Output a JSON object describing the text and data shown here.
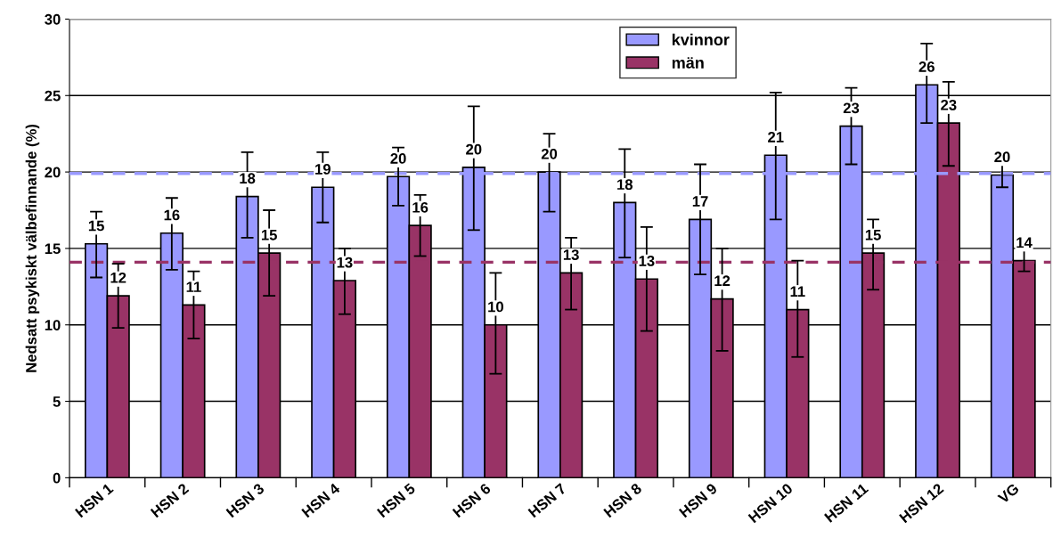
{
  "chart_data": {
    "type": "bar",
    "ylabel": "Nedsatt psykiskt välbefinnande (%)",
    "categories": [
      "HSN 1",
      "HSN 2",
      "HSN 3",
      "HSN 4",
      "HSN 5",
      "HSN 6",
      "HSN 7",
      "HSN 8",
      "HSN 9",
      "HSN 10",
      "HSN 11",
      "HSN 12",
      "VG"
    ],
    "series": [
      {
        "name": "kvinnor",
        "color": "#9999ff",
        "values": [
          15.3,
          16.0,
          18.4,
          19.0,
          19.7,
          20.3,
          20.0,
          18.0,
          16.9,
          21.1,
          23.0,
          25.7,
          19.8
        ],
        "value_labels": [
          "15",
          "16",
          "18",
          "19",
          "20",
          "20",
          "20",
          "18",
          "17",
          "21",
          "23",
          "26",
          "20"
        ],
        "errors": [
          [
            13.1,
            17.4
          ],
          [
            13.6,
            18.3
          ],
          [
            15.7,
            21.3
          ],
          [
            16.7,
            21.3
          ],
          [
            17.8,
            21.6
          ],
          [
            16.2,
            24.3
          ],
          [
            17.4,
            22.5
          ],
          [
            14.4,
            21.5
          ],
          [
            13.3,
            20.5
          ],
          [
            16.9,
            25.2
          ],
          [
            20.5,
            25.5
          ],
          [
            23.2,
            28.4
          ],
          [
            19.0,
            20.5
          ]
        ]
      },
      {
        "name": "män",
        "color": "#993366",
        "values": [
          11.9,
          11.3,
          14.7,
          12.9,
          16.5,
          10.0,
          13.4,
          13.0,
          11.7,
          11.0,
          14.7,
          23.2,
          14.2
        ],
        "value_labels": [
          "12",
          "11",
          "15",
          "13",
          "16",
          "10",
          "13",
          "13",
          "12",
          "11",
          "15",
          "23",
          "14"
        ],
        "errors": [
          [
            9.8,
            14.0
          ],
          [
            9.1,
            13.5
          ],
          [
            11.9,
            17.5
          ],
          [
            10.7,
            15.0
          ],
          [
            14.5,
            18.5
          ],
          [
            6.8,
            13.4
          ],
          [
            11.0,
            15.7
          ],
          [
            9.6,
            16.4
          ],
          [
            8.3,
            15.0
          ],
          [
            7.9,
            14.2
          ],
          [
            12.3,
            16.9
          ],
          [
            20.4,
            25.9
          ],
          [
            13.5,
            14.9
          ]
        ]
      }
    ],
    "ref_lines": [
      {
        "axis": "y",
        "value": 19.9,
        "color": "#9999ff",
        "line_style": "dashed"
      },
      {
        "axis": "y",
        "value": 14.1,
        "color": "#993366",
        "line_style": "dashed"
      }
    ],
    "ylim": [
      0,
      30
    ],
    "yticks": [
      0,
      5,
      10,
      15,
      20,
      25,
      30
    ],
    "grid": "y",
    "legend": "top"
  }
}
